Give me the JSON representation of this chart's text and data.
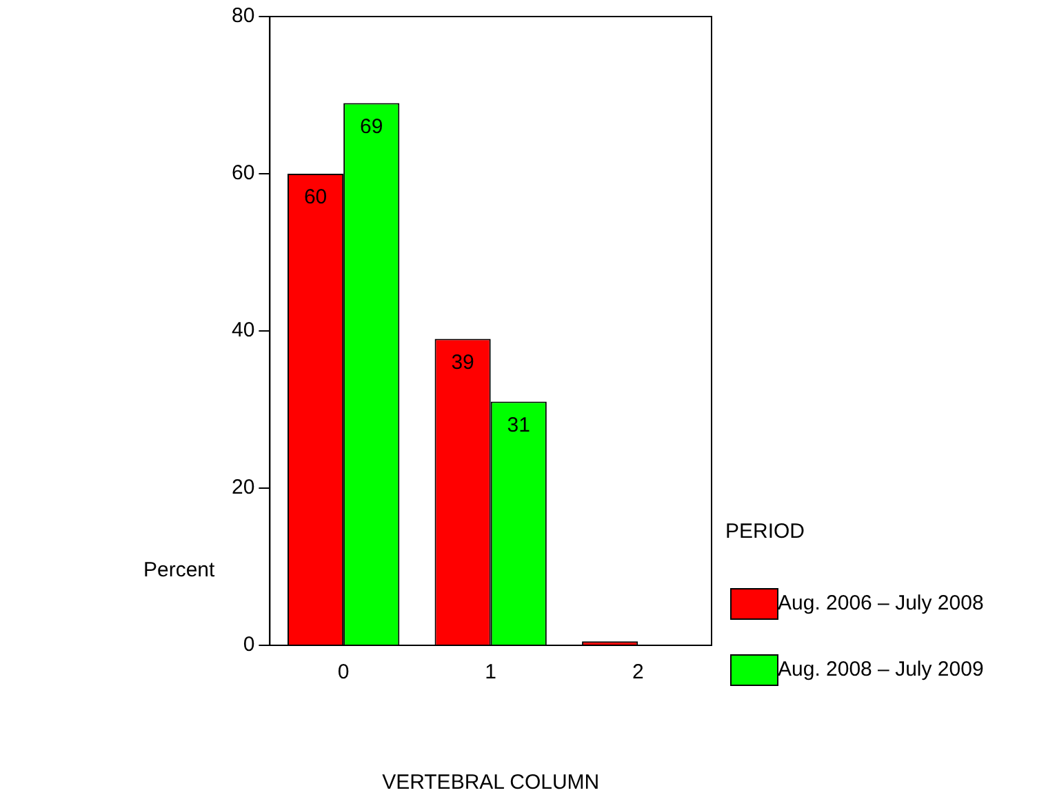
{
  "chart_data": {
    "type": "bar",
    "xlabel": "VERTEBRAL COLUMN",
    "ylabel": "Percent",
    "legend_title": "PERIOD",
    "categories": [
      "0",
      "1",
      "2"
    ],
    "series": [
      {
        "name": "Aug. 2006 – July 2008",
        "color": "#ff0000",
        "values": [
          60,
          39,
          0.5
        ],
        "value_labels": [
          "60",
          "39",
          null
        ]
      },
      {
        "name": "Aug. 2008 – July 2009",
        "color": "#00ff00",
        "values": [
          69,
          31,
          null
        ],
        "value_labels": [
          "69",
          "31",
          null
        ]
      }
    ],
    "ylim": [
      0,
      80
    ],
    "yticks": [
      0,
      20,
      40,
      60,
      80
    ],
    "grid": false,
    "legend": "right"
  }
}
